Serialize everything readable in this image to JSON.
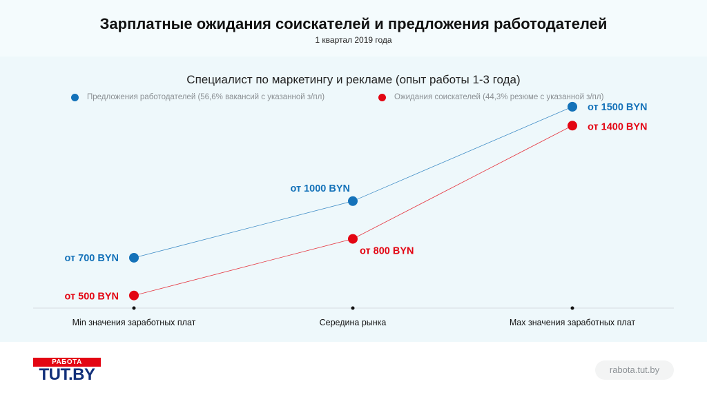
{
  "header": {
    "title": "Зарплатные ожидания соискателей и предложения работодателей",
    "subtitle": "1 квартал 2019 года"
  },
  "chart_data": {
    "type": "line",
    "title": "Специалист по маркетингу и рекламе (опыт работы 1-3 года)",
    "categories": [
      "Min значения заработных плат",
      "Середина рынка",
      "Max значения заработных плат"
    ],
    "series": [
      {
        "name": "Предложения работодателей (56,6% вакансий с указанной з/пл)",
        "color": "#1472b9",
        "values": [
          700,
          1000,
          1500
        ],
        "labels": [
          "от 700 BYN",
          "от 1000 BYN",
          "от 1500 BYN"
        ]
      },
      {
        "name": "Ожидания соискателей (44,3% резюме с указанной з/пл)",
        "color": "#e30613",
        "values": [
          500,
          800,
          1400
        ],
        "labels": [
          "от 500 BYN",
          "от 800 BYN",
          "от 1400 BYN"
        ]
      }
    ],
    "ylim": [
      300,
      1600
    ],
    "grid": false,
    "legend": "top"
  },
  "footer": {
    "logo_top": "РАБОТА",
    "logo_bottom": "TUT.BY",
    "site": "rabota.tut.by"
  }
}
